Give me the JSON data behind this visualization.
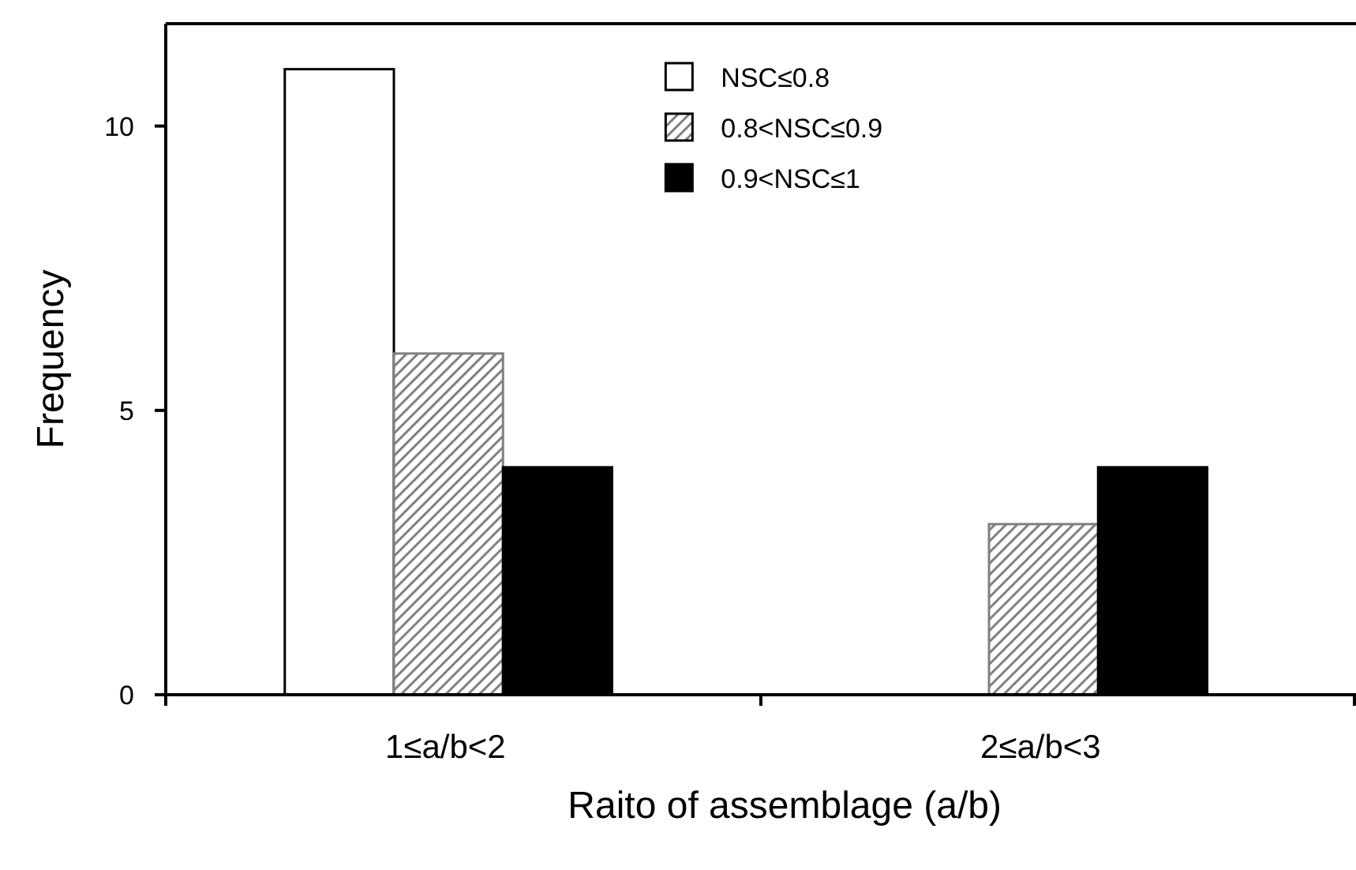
{
  "chart_data": {
    "type": "bar",
    "xlabel": "Raito of assemblage (a/b)",
    "ylabel": "Frequency",
    "categories": [
      "1≤a/b<2",
      "2≤a/b<3"
    ],
    "series": [
      {
        "name": "NSC≤0.8",
        "color": "#ffffff",
        "values": [
          11,
          0
        ]
      },
      {
        "name": "0.8<NSC≤0.9",
        "color": "#808080",
        "values": [
          6,
          3
        ]
      },
      {
        "name": "0.9<NSC≤1",
        "color": "#000000",
        "values": [
          4,
          4
        ]
      }
    ],
    "ylim": [
      0,
      11.8
    ],
    "yticks": [
      0,
      5,
      10
    ],
    "grid": false,
    "legend": "top right"
  }
}
